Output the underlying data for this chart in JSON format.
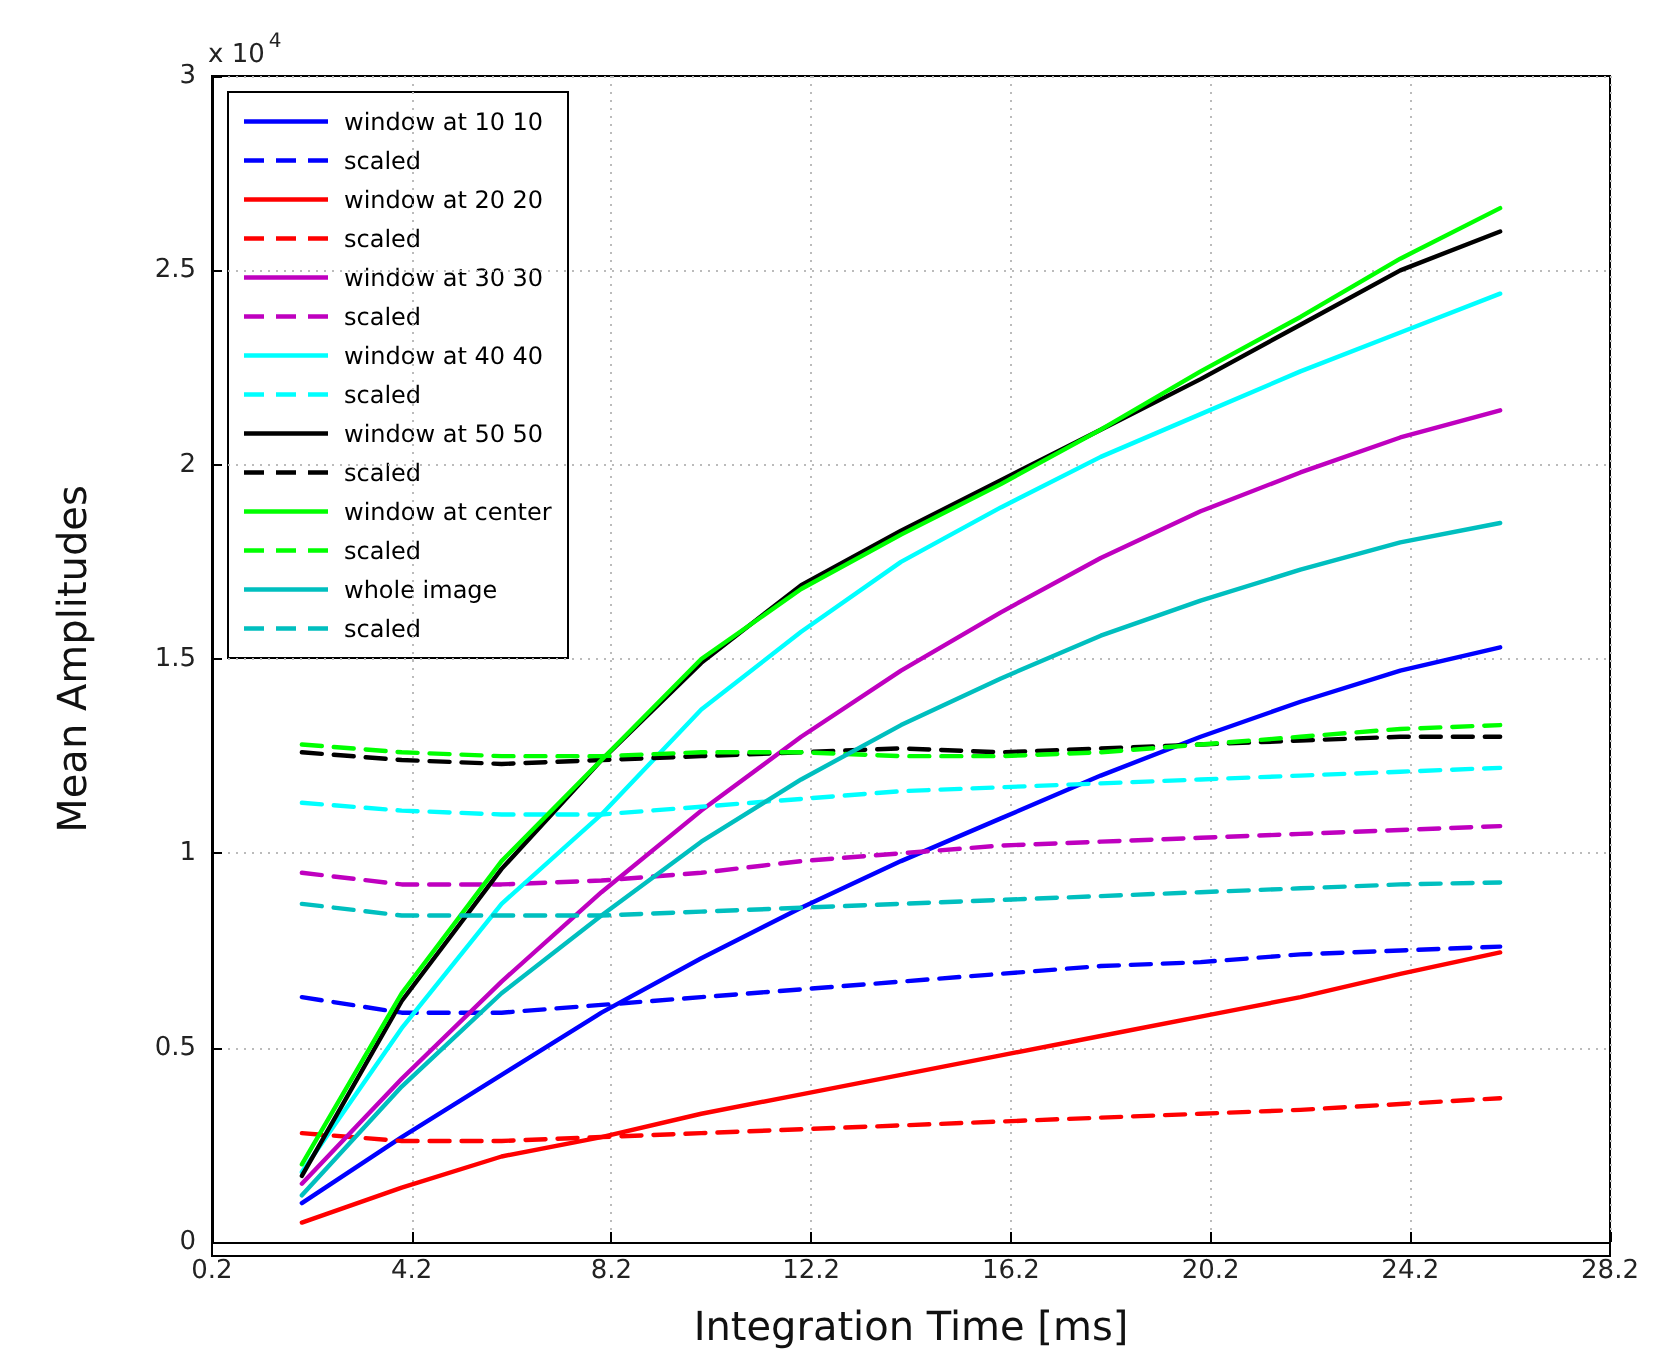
{
  "chart_data": {
    "type": "line",
    "xlabel": "Integration Time [ms]",
    "ylabel": "Mean Amplitudes",
    "annotations": [
      "x 10$^{4}$"
    ],
    "x": [
      2,
      4,
      6,
      8,
      10,
      12,
      14,
      16,
      18,
      20,
      22,
      24,
      26
    ],
    "xlim": [
      0.2,
      28.2
    ],
    "xticks": [
      0.2,
      4.2,
      8.2,
      12.2,
      16.2,
      20.2,
      24.2,
      28.2
    ],
    "ylim": [
      0,
      3
    ],
    "yticks": [
      0,
      0.5,
      1,
      1.5,
      2,
      2.5,
      3
    ],
    "grid": true,
    "legend": "top left",
    "marker": "none",
    "series": [
      {
        "name": "window at 10 10",
        "color": "#0000ff",
        "line_style": "solid",
        "values": [
          0.1,
          0.27,
          0.43,
          0.59,
          0.73,
          0.86,
          0.98,
          1.09,
          1.2,
          1.3,
          1.39,
          1.47,
          1.53
        ]
      },
      {
        "name": "scaled",
        "color": "#0000ff",
        "line_style": "dashed",
        "values": [
          0.63,
          0.59,
          0.59,
          0.61,
          0.63,
          0.65,
          0.67,
          0.69,
          0.71,
          0.72,
          0.74,
          0.75,
          0.76
        ]
      },
      {
        "name": "window at 20 20",
        "color": "#ff0000",
        "line_style": "solid",
        "values": [
          0.05,
          0.14,
          0.22,
          0.27,
          0.33,
          0.38,
          0.43,
          0.48,
          0.53,
          0.58,
          0.63,
          0.69,
          0.745
        ]
      },
      {
        "name": "scaled",
        "color": "#ff0000",
        "line_style": "dashed",
        "values": [
          0.28,
          0.26,
          0.26,
          0.27,
          0.28,
          0.29,
          0.3,
          0.31,
          0.32,
          0.33,
          0.34,
          0.355,
          0.37
        ]
      },
      {
        "name": "window at 30 30",
        "color": "#bf00bf",
        "line_style": "solid",
        "values": [
          0.15,
          0.42,
          0.67,
          0.9,
          1.11,
          1.3,
          1.47,
          1.62,
          1.76,
          1.88,
          1.98,
          2.07,
          2.14
        ]
      },
      {
        "name": "scaled",
        "color": "#bf00bf",
        "line_style": "dashed",
        "values": [
          0.95,
          0.92,
          0.92,
          0.93,
          0.95,
          0.98,
          1.0,
          1.02,
          1.03,
          1.04,
          1.05,
          1.06,
          1.07
        ]
      },
      {
        "name": "window at 40 40",
        "color": "#00ffff",
        "line_style": "solid",
        "values": [
          0.18,
          0.55,
          0.87,
          1.1,
          1.37,
          1.57,
          1.75,
          1.89,
          2.02,
          2.13,
          2.24,
          2.34,
          2.44
        ]
      },
      {
        "name": "scaled",
        "color": "#00ffff",
        "line_style": "dashed",
        "values": [
          1.13,
          1.11,
          1.1,
          1.1,
          1.12,
          1.14,
          1.16,
          1.17,
          1.18,
          1.19,
          1.2,
          1.21,
          1.22
        ]
      },
      {
        "name": "window at 50 50",
        "color": "#000000",
        "line_style": "solid",
        "values": [
          0.17,
          0.62,
          0.96,
          1.24,
          1.49,
          1.69,
          1.83,
          1.96,
          2.09,
          2.22,
          2.36,
          2.5,
          2.6
        ]
      },
      {
        "name": "scaled",
        "color": "#000000",
        "line_style": "dashed",
        "values": [
          1.26,
          1.24,
          1.23,
          1.24,
          1.25,
          1.26,
          1.27,
          1.26,
          1.27,
          1.28,
          1.29,
          1.3,
          1.3
        ]
      },
      {
        "name": "window at center",
        "color": "#00ff00",
        "line_style": "solid",
        "values": [
          0.2,
          0.64,
          0.98,
          1.24,
          1.5,
          1.68,
          1.82,
          1.95,
          2.09,
          2.24,
          2.38,
          2.53,
          2.66
        ]
      },
      {
        "name": "scaled",
        "color": "#00ff00",
        "line_style": "dashed",
        "values": [
          1.28,
          1.26,
          1.25,
          1.25,
          1.26,
          1.26,
          1.25,
          1.25,
          1.26,
          1.28,
          1.3,
          1.32,
          1.33
        ]
      },
      {
        "name": "whole image",
        "color": "#00bfbf",
        "line_style": "solid",
        "values": [
          0.12,
          0.4,
          0.64,
          0.84,
          1.03,
          1.19,
          1.33,
          1.45,
          1.56,
          1.65,
          1.73,
          1.8,
          1.85
        ]
      },
      {
        "name": "scaled",
        "color": "#00bfbf",
        "line_style": "dashed",
        "values": [
          0.87,
          0.84,
          0.84,
          0.84,
          0.85,
          0.86,
          0.87,
          0.88,
          0.89,
          0.9,
          0.91,
          0.92,
          0.925
        ]
      }
    ]
  }
}
